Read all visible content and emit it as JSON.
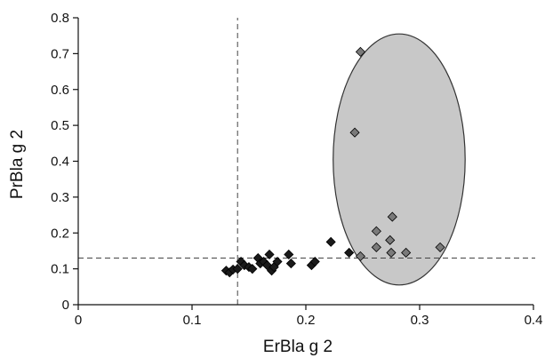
{
  "chart_data": {
    "type": "scatter",
    "xlabel": "ErBla g 2",
    "ylabel": "PrBla g 2",
    "xlim": [
      0,
      0.4
    ],
    "ylim": [
      0,
      0.8
    ],
    "x_ticks": [
      "0",
      "0.1",
      "0.2",
      "0.3",
      "0.4"
    ],
    "y_ticks": [
      "0",
      "0.1",
      "0.2",
      "0.3",
      "0.4",
      "0.5",
      "0.6",
      "0.7",
      "0.8"
    ],
    "grid": false,
    "cutoff_lines": {
      "x": 0.14,
      "y": 0.13
    },
    "ellipse_region": {
      "cx": 0.282,
      "cy": 0.405,
      "rx": 0.058,
      "ry": 0.35,
      "fill": "#c8c8c8"
    },
    "series": [
      {
        "marker_color": "#1a1a1a",
        "points": [
          [
            0.13,
            0.095
          ],
          [
            0.133,
            0.09
          ],
          [
            0.136,
            0.098
          ],
          [
            0.14,
            0.1
          ],
          [
            0.143,
            0.12
          ],
          [
            0.146,
            0.11
          ],
          [
            0.15,
            0.105
          ],
          [
            0.153,
            0.1
          ],
          [
            0.158,
            0.13
          ],
          [
            0.16,
            0.115
          ],
          [
            0.163,
            0.12
          ],
          [
            0.166,
            0.11
          ],
          [
            0.168,
            0.14
          ],
          [
            0.17,
            0.095
          ],
          [
            0.172,
            0.105
          ],
          [
            0.175,
            0.12
          ],
          [
            0.185,
            0.14
          ],
          [
            0.187,
            0.115
          ],
          [
            0.205,
            0.11
          ],
          [
            0.208,
            0.12
          ],
          [
            0.222,
            0.175
          ],
          [
            0.238,
            0.145
          ]
        ]
      },
      {
        "marker_color": "#7a7a7a",
        "points": [
          [
            0.248,
            0.705
          ],
          [
            0.243,
            0.48
          ],
          [
            0.276,
            0.245
          ],
          [
            0.262,
            0.205
          ],
          [
            0.274,
            0.18
          ],
          [
            0.262,
            0.16
          ],
          [
            0.275,
            0.145
          ],
          [
            0.288,
            0.145
          ],
          [
            0.248,
            0.135
          ],
          [
            0.318,
            0.16
          ]
        ]
      }
    ]
  }
}
